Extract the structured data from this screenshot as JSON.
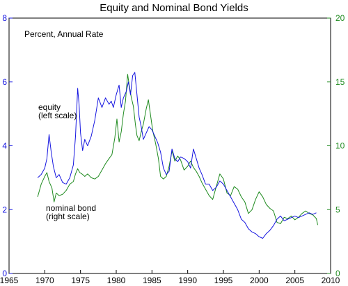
{
  "chart_data": {
    "type": "line",
    "title": "Equity and Nominal Bond Yields",
    "subtitle": "Percent, Annual Rate",
    "xlabel": "",
    "xlim": [
      1965,
      2010
    ],
    "x_ticks": [
      "1965",
      "1970",
      "1975",
      "1980",
      "1985",
      "1990",
      "1995",
      "2000",
      "2005",
      "2010"
    ],
    "left_axis": {
      "ylabel": "",
      "ylim": [
        0,
        8
      ],
      "ticks": [
        "0",
        "2",
        "4",
        "6",
        "8"
      ],
      "color": "#1515e0"
    },
    "right_axis": {
      "ylabel": "",
      "ylim": [
        0,
        20
      ],
      "ticks": [
        "0",
        "5",
        "10",
        "15",
        "20"
      ],
      "color": "#1e8a1e"
    },
    "grid": false,
    "annotations": [
      {
        "id": "equity",
        "lines": [
          "equity",
          "(left scale)"
        ]
      },
      {
        "id": "bond",
        "lines": [
          "nominal bond",
          "(right scale)"
        ]
      }
    ],
    "series": [
      {
        "key": "equity",
        "axis": "left",
        "color": "#1515e0",
        "points": [
          [
            1969.0,
            3.0
          ],
          [
            1969.5,
            3.1
          ],
          [
            1970.0,
            3.3
          ],
          [
            1970.3,
            3.6
          ],
          [
            1970.6,
            4.35
          ],
          [
            1970.9,
            3.8
          ],
          [
            1971.2,
            3.35
          ],
          [
            1971.6,
            3.0
          ],
          [
            1972.0,
            3.1
          ],
          [
            1972.5,
            2.85
          ],
          [
            1973.0,
            2.8
          ],
          [
            1973.5,
            3.0
          ],
          [
            1974.0,
            3.4
          ],
          [
            1974.3,
            4.3
          ],
          [
            1974.6,
            5.8
          ],
          [
            1974.8,
            5.3
          ],
          [
            1975.0,
            4.4
          ],
          [
            1975.3,
            3.85
          ],
          [
            1975.6,
            4.2
          ],
          [
            1976.0,
            4.0
          ],
          [
            1976.5,
            4.3
          ],
          [
            1977.0,
            4.8
          ],
          [
            1977.5,
            5.5
          ],
          [
            1978.0,
            5.2
          ],
          [
            1978.5,
            5.5
          ],
          [
            1979.0,
            5.3
          ],
          [
            1979.3,
            5.4
          ],
          [
            1979.6,
            5.2
          ],
          [
            1980.0,
            5.6
          ],
          [
            1980.4,
            5.9
          ],
          [
            1980.7,
            5.2
          ],
          [
            1981.0,
            5.5
          ],
          [
            1981.4,
            5.7
          ],
          [
            1981.7,
            6.0
          ],
          [
            1982.0,
            5.6
          ],
          [
            1982.3,
            6.2
          ],
          [
            1982.6,
            6.3
          ],
          [
            1982.9,
            5.6
          ],
          [
            1983.2,
            4.9
          ],
          [
            1983.5,
            4.6
          ],
          [
            1983.8,
            4.2
          ],
          [
            1984.2,
            4.4
          ],
          [
            1984.6,
            4.6
          ],
          [
            1985.0,
            4.5
          ],
          [
            1985.4,
            4.3
          ],
          [
            1985.8,
            4.1
          ],
          [
            1986.2,
            3.8
          ],
          [
            1986.6,
            3.3
          ],
          [
            1987.0,
            3.1
          ],
          [
            1987.4,
            3.2
          ],
          [
            1987.8,
            3.9
          ],
          [
            1988.2,
            3.6
          ],
          [
            1988.6,
            3.5
          ],
          [
            1989.0,
            3.65
          ],
          [
            1989.5,
            3.6
          ],
          [
            1990.0,
            3.5
          ],
          [
            1990.4,
            3.3
          ],
          [
            1990.8,
            3.9
          ],
          [
            1991.2,
            3.6
          ],
          [
            1991.6,
            3.3
          ],
          [
            1992.0,
            3.1
          ],
          [
            1992.5,
            2.8
          ],
          [
            1993.0,
            2.8
          ],
          [
            1993.5,
            2.6
          ],
          [
            1994.0,
            2.7
          ],
          [
            1994.5,
            2.9
          ],
          [
            1995.0,
            2.8
          ],
          [
            1995.5,
            2.6
          ],
          [
            1996.0,
            2.4
          ],
          [
            1996.5,
            2.2
          ],
          [
            1997.0,
            2.0
          ],
          [
            1997.5,
            1.7
          ],
          [
            1998.0,
            1.6
          ],
          [
            1998.5,
            1.4
          ],
          [
            1999.0,
            1.3
          ],
          [
            1999.5,
            1.25
          ],
          [
            2000.0,
            1.15
          ],
          [
            2000.5,
            1.1
          ],
          [
            2001.0,
            1.25
          ],
          [
            2001.5,
            1.35
          ],
          [
            2002.0,
            1.5
          ],
          [
            2002.5,
            1.7
          ],
          [
            2003.0,
            1.8
          ],
          [
            2003.5,
            1.65
          ],
          [
            2004.0,
            1.7
          ],
          [
            2004.5,
            1.75
          ],
          [
            2005.0,
            1.8
          ],
          [
            2005.5,
            1.75
          ],
          [
            2006.0,
            1.8
          ],
          [
            2006.5,
            1.85
          ],
          [
            2007.0,
            1.9
          ],
          [
            2007.5,
            1.85
          ],
          [
            2008.0,
            1.9
          ]
        ]
      },
      {
        "key": "bond",
        "axis": "right",
        "color": "#1e8a1e",
        "points": [
          [
            1969.0,
            6.0
          ],
          [
            1969.5,
            7.0
          ],
          [
            1970.0,
            7.6
          ],
          [
            1970.3,
            7.9
          ],
          [
            1970.6,
            7.2
          ],
          [
            1971.0,
            6.7
          ],
          [
            1971.3,
            5.6
          ],
          [
            1971.6,
            6.3
          ],
          [
            1972.0,
            6.1
          ],
          [
            1972.5,
            6.2
          ],
          [
            1973.0,
            6.5
          ],
          [
            1973.5,
            7.0
          ],
          [
            1974.0,
            7.2
          ],
          [
            1974.3,
            7.8
          ],
          [
            1974.6,
            8.2
          ],
          [
            1974.9,
            7.9
          ],
          [
            1975.2,
            7.8
          ],
          [
            1975.6,
            7.6
          ],
          [
            1976.0,
            7.8
          ],
          [
            1976.5,
            7.5
          ],
          [
            1977.0,
            7.4
          ],
          [
            1977.5,
            7.6
          ],
          [
            1978.0,
            8.1
          ],
          [
            1978.5,
            8.6
          ],
          [
            1979.0,
            9.0
          ],
          [
            1979.4,
            9.3
          ],
          [
            1979.8,
            10.6
          ],
          [
            1980.1,
            12.1
          ],
          [
            1980.4,
            10.3
          ],
          [
            1980.7,
            11.1
          ],
          [
            1981.0,
            12.5
          ],
          [
            1981.3,
            13.5
          ],
          [
            1981.6,
            15.6
          ],
          [
            1981.8,
            14.8
          ],
          [
            1982.1,
            13.8
          ],
          [
            1982.4,
            13.1
          ],
          [
            1982.7,
            11.6
          ],
          [
            1982.9,
            10.8
          ],
          [
            1983.2,
            10.4
          ],
          [
            1983.5,
            11.1
          ],
          [
            1983.8,
            11.7
          ],
          [
            1984.2,
            12.9
          ],
          [
            1984.5,
            13.6
          ],
          [
            1984.8,
            12.4
          ],
          [
            1985.1,
            11.2
          ],
          [
            1985.5,
            10.2
          ],
          [
            1985.9,
            9.0
          ],
          [
            1986.2,
            7.6
          ],
          [
            1986.6,
            7.4
          ],
          [
            1987.0,
            7.6
          ],
          [
            1987.4,
            8.4
          ],
          [
            1987.8,
            9.6
          ],
          [
            1988.2,
            8.8
          ],
          [
            1988.6,
            9.2
          ],
          [
            1989.0,
            8.9
          ],
          [
            1989.5,
            8.1
          ],
          [
            1990.0,
            8.4
          ],
          [
            1990.4,
            8.8
          ],
          [
            1990.8,
            8.3
          ],
          [
            1991.2,
            8.0
          ],
          [
            1991.6,
            7.6
          ],
          [
            1992.0,
            7.1
          ],
          [
            1992.5,
            6.6
          ],
          [
            1993.0,
            6.1
          ],
          [
            1993.5,
            5.8
          ],
          [
            1994.0,
            6.8
          ],
          [
            1994.5,
            7.8
          ],
          [
            1995.0,
            7.4
          ],
          [
            1995.5,
            6.3
          ],
          [
            1996.0,
            6.1
          ],
          [
            1996.5,
            6.8
          ],
          [
            1997.0,
            6.6
          ],
          [
            1997.5,
            6.0
          ],
          [
            1998.0,
            5.6
          ],
          [
            1998.5,
            4.7
          ],
          [
            1999.0,
            5.0
          ],
          [
            1999.5,
            5.8
          ],
          [
            2000.0,
            6.4
          ],
          [
            2000.5,
            6.0
          ],
          [
            2001.0,
            5.4
          ],
          [
            2001.5,
            5.1
          ],
          [
            2002.0,
            4.9
          ],
          [
            2002.5,
            4.0
          ],
          [
            2003.0,
            3.9
          ],
          [
            2003.5,
            4.4
          ],
          [
            2004.0,
            4.3
          ],
          [
            2004.5,
            4.5
          ],
          [
            2005.0,
            4.2
          ],
          [
            2005.5,
            4.4
          ],
          [
            2006.0,
            4.7
          ],
          [
            2006.5,
            4.9
          ],
          [
            2007.0,
            4.7
          ],
          [
            2007.5,
            4.6
          ],
          [
            2008.0,
            4.3
          ],
          [
            2008.2,
            3.8
          ]
        ]
      }
    ]
  }
}
